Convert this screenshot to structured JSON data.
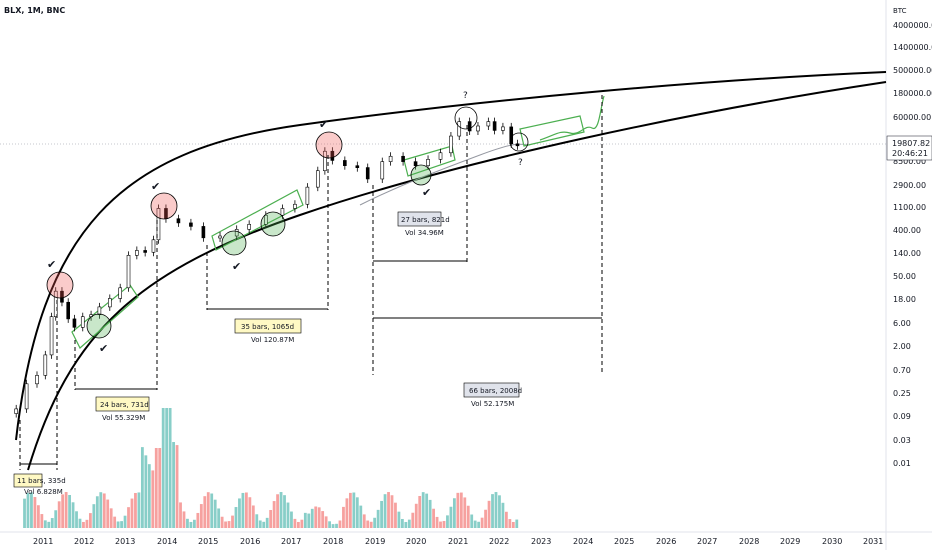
{
  "symbol": "BLX, 1M, BNC",
  "chart_data": {
    "type": "candlestick",
    "currency": "BTC",
    "scale": "log",
    "price_ticks": [
      "4000000.00",
      "1400000.00",
      "500000.00",
      "180000.00",
      "60000.00",
      "19807.82",
      "8500.00",
      "2900.00",
      "1100.00",
      "400.00",
      "140.00",
      "50.00",
      "18.00",
      "6.00",
      "2.00",
      "0.70",
      "0.25",
      "0.09",
      "0.03",
      "0.01"
    ],
    "price_tick_values": [
      4000000,
      1400000,
      500000,
      180000,
      60000,
      19807.82,
      8500,
      2900,
      1100,
      400,
      140,
      50,
      18,
      6,
      2,
      0.7,
      0.25,
      0.09,
      0.03,
      0.01
    ],
    "last_price": "19807.82",
    "countdown": "20:46:21",
    "years": [
      "2011",
      "2012",
      "2013",
      "2014",
      "2015",
      "2016",
      "2017",
      "2018",
      "2019",
      "2020",
      "2021",
      "2022",
      "2023",
      "2024",
      "2025",
      "2026",
      "2027",
      "2028",
      "2029",
      "2030",
      "2031"
    ],
    "closes": [
      {
        "t": 2010.5,
        "v": 0.06
      },
      {
        "t": 2010.75,
        "v": 0.2
      },
      {
        "t": 2011.0,
        "v": 0.3
      },
      {
        "t": 2011.2,
        "v": 0.8
      },
      {
        "t": 2011.35,
        "v": 5
      },
      {
        "t": 2011.45,
        "v": 17
      },
      {
        "t": 2011.6,
        "v": 10
      },
      {
        "t": 2011.75,
        "v": 4.5
      },
      {
        "t": 2011.9,
        "v": 3
      },
      {
        "t": 2012.1,
        "v": 5
      },
      {
        "t": 2012.3,
        "v": 5.5
      },
      {
        "t": 2012.5,
        "v": 8
      },
      {
        "t": 2012.75,
        "v": 12
      },
      {
        "t": 2013.0,
        "v": 20
      },
      {
        "t": 2013.2,
        "v": 95
      },
      {
        "t": 2013.4,
        "v": 120
      },
      {
        "t": 2013.6,
        "v": 110
      },
      {
        "t": 2013.8,
        "v": 200
      },
      {
        "t": 2013.92,
        "v": 900
      },
      {
        "t": 2014.1,
        "v": 550
      },
      {
        "t": 2014.4,
        "v": 450
      },
      {
        "t": 2014.7,
        "v": 380
      },
      {
        "t": 2015.0,
        "v": 220
      },
      {
        "t": 2015.4,
        "v": 240
      },
      {
        "t": 2015.8,
        "v": 330
      },
      {
        "t": 2016.1,
        "v": 420
      },
      {
        "t": 2016.5,
        "v": 650
      },
      {
        "t": 2016.9,
        "v": 900
      },
      {
        "t": 2017.2,
        "v": 1100
      },
      {
        "t": 2017.5,
        "v": 2500
      },
      {
        "t": 2017.75,
        "v": 5500
      },
      {
        "t": 2017.92,
        "v": 14000
      },
      {
        "t": 2018.1,
        "v": 9000
      },
      {
        "t": 2018.4,
        "v": 7000
      },
      {
        "t": 2018.7,
        "v": 6400
      },
      {
        "t": 2018.95,
        "v": 3700
      },
      {
        "t": 2019.3,
        "v": 8500
      },
      {
        "t": 2019.5,
        "v": 11000
      },
      {
        "t": 2019.8,
        "v": 8500
      },
      {
        "t": 2020.1,
        "v": 7000
      },
      {
        "t": 2020.4,
        "v": 9500
      },
      {
        "t": 2020.7,
        "v": 13000
      },
      {
        "t": 2020.95,
        "v": 29000
      },
      {
        "t": 2021.15,
        "v": 58000
      },
      {
        "t": 2021.4,
        "v": 37000
      },
      {
        "t": 2021.6,
        "v": 47000
      },
      {
        "t": 2021.85,
        "v": 58000
      },
      {
        "t": 2022.0,
        "v": 38000
      },
      {
        "t": 2022.2,
        "v": 45000
      },
      {
        "t": 2022.4,
        "v": 20000
      },
      {
        "t": 2022.55,
        "v": 19807.82
      }
    ],
    "annotations": [
      {
        "label": "11 bars, 335d",
        "sub": "Vol 6.828M"
      },
      {
        "label": "24 bars, 731d",
        "sub": "Vol 55.329M"
      },
      {
        "label": "35 bars, 1065d",
        "sub": "Vol 120.87M"
      },
      {
        "label": "27 bars, 821d",
        "sub": "Vol 34.96M"
      },
      {
        "label": "66 bars, 2008d",
        "sub": "Vol 52.175M"
      }
    ]
  }
}
